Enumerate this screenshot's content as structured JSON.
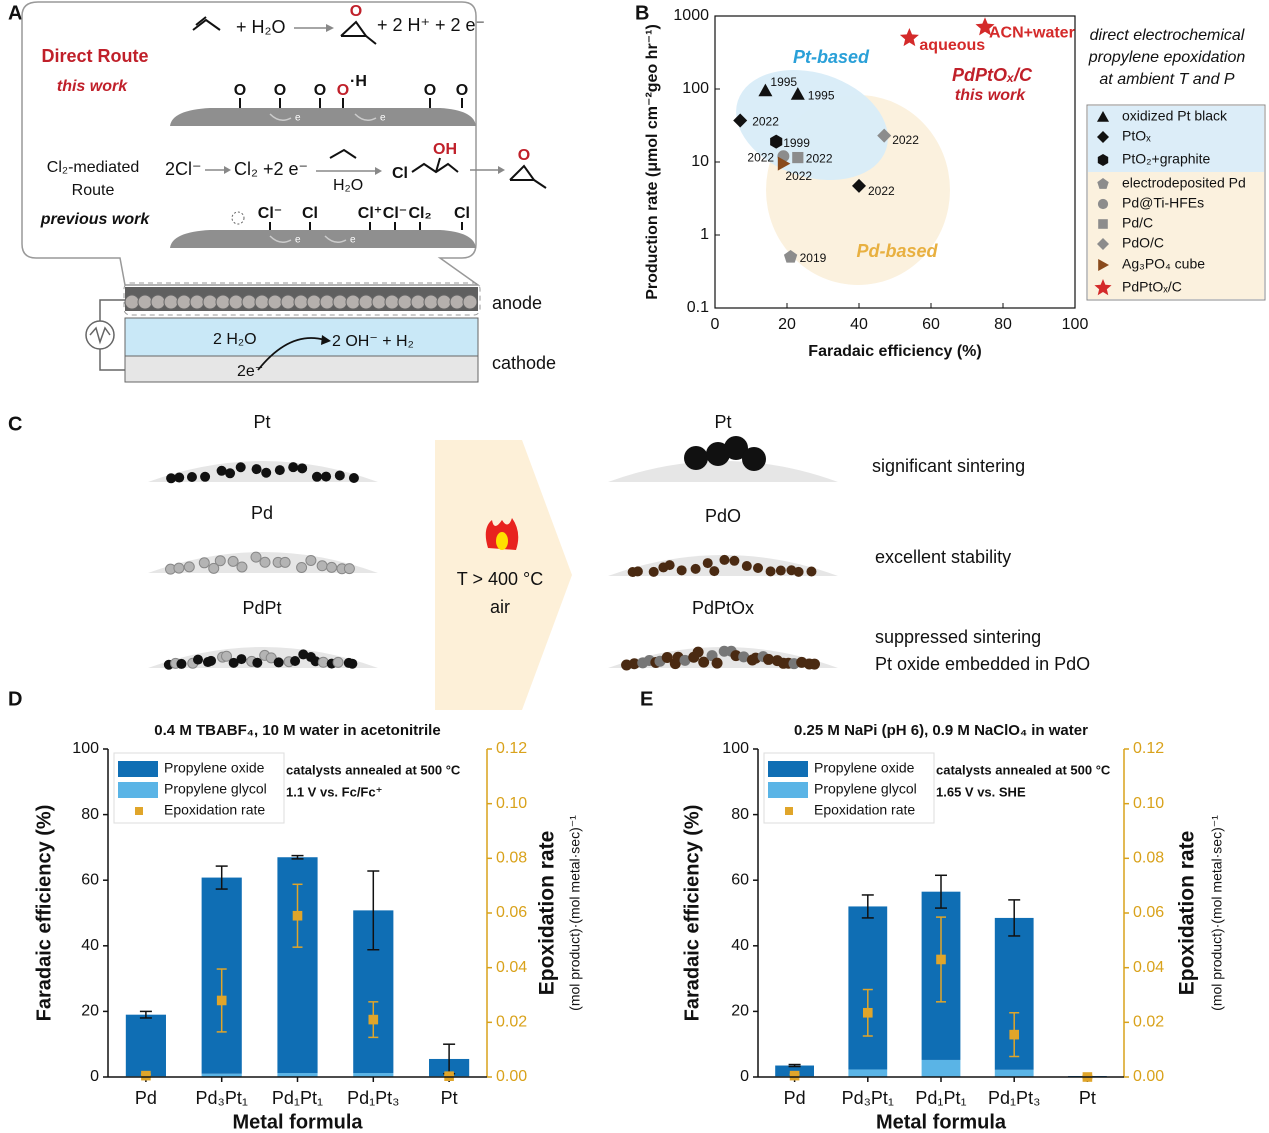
{
  "panels": {
    "A": {
      "letter": "A",
      "equation1_reactant": "+ H₂O",
      "equation1_product": "+ 2 H⁺ + 2 e⁻",
      "epoxide_atom": "O",
      "direct_route": "Direct Route",
      "direct_note": "this work",
      "surface1_atoms": [
        "O",
        "O",
        "O",
        "O",
        "O",
        "O"
      ],
      "surface1_h": "·H",
      "surface_electron": "e",
      "cl_route": [
        "Cl₂-mediated",
        "Route"
      ],
      "cl_note": "previous work",
      "equation2_start": "2Cl⁻",
      "equation2_mid": "Cl₂ +2 e⁻",
      "equation2_water": "H₂O",
      "equation2_cl": "Cl",
      "equation2_oh": "OH",
      "surface2_atoms": [
        "Cl⁻",
        "Cl",
        "Cl⁺",
        "Cl⁻",
        "Cl₂",
        "Cl"
      ],
      "anode": "anode",
      "cathode": "cathode",
      "water": "2 H₂O",
      "products": "2 OH⁻ + H₂",
      "electrons": "2e⁻"
    },
    "C": {
      "letter": "C",
      "before": [
        "Pt",
        "Pd",
        "PdPt"
      ],
      "condition": [
        "T > 400 °C",
        "air"
      ],
      "after": [
        "Pt",
        "PdO",
        "PdPtOx"
      ],
      "outcomes": [
        "significant sintering",
        "excellent stability",
        "suppressed sintering",
        "Pt oxide embedded in PdO"
      ]
    }
  },
  "chart_data": [
    {
      "letter": "B",
      "type": "scatter",
      "xlabel": "Faradaic efficiency (%)",
      "ylabel": "Production rate  (μmol cm⁻²geo hr⁻¹)",
      "xlim": [
        0,
        100
      ],
      "xticks": [
        0,
        20,
        40,
        60,
        80,
        100
      ],
      "ylim": [
        0.1,
        1000
      ],
      "yticks": [
        0.1,
        1,
        10,
        100,
        1000
      ],
      "log_y": true,
      "annotation": [
        "direct electrochemical",
        "propylene epoxidation",
        "at ambient T and P"
      ],
      "regions": [
        "Pt-based",
        "Pd-based"
      ],
      "highlight": [
        "PdPtOₓ/C",
        "this work"
      ],
      "series": [
        {
          "name": "oxidized Pt black",
          "color": "#111111",
          "marker": "triangle",
          "x": [
            14,
            23
          ],
          "y": [
            95,
            85
          ],
          "labels": [
            "1995",
            "1995"
          ]
        },
        {
          "name": "PtOₓ",
          "color": "#111111",
          "marker": "diamond",
          "x": [
            7,
            40
          ],
          "y": [
            37,
            4.7
          ],
          "labels": [
            "2022",
            "2022"
          ]
        },
        {
          "name": "PtO₂+graphite",
          "color": "#111111",
          "marker": "hexagon",
          "x": [
            17
          ],
          "y": [
            19
          ],
          "labels": [
            "1999"
          ]
        },
        {
          "name": "electrodeposited Pd",
          "color": "#8c8c8c",
          "marker": "pentagon",
          "x": [
            21
          ],
          "y": [
            0.5
          ],
          "labels": [
            "2019"
          ]
        },
        {
          "name": "Pd@Ti-HFEs",
          "color": "#8c8c8c",
          "marker": "circle",
          "x": [
            19
          ],
          "y": [
            12
          ],
          "labels": [
            "2022"
          ]
        },
        {
          "name": "Pd/C",
          "color": "#8c8c8c",
          "marker": "square",
          "x": [
            23
          ],
          "y": [
            11.5
          ],
          "labels": [
            "2022"
          ]
        },
        {
          "name": "PdO/C",
          "color": "#8c8c8c",
          "marker": "diamond",
          "x": [
            47
          ],
          "y": [
            23
          ],
          "labels": [
            "2022"
          ]
        },
        {
          "name": "Ag₃PO₄ cube",
          "color": "#8a4b1c",
          "marker": "triangle-right",
          "x": [
            19
          ],
          "y": [
            9.5
          ],
          "labels": [
            "2022"
          ]
        },
        {
          "name": "PdPtOₓ/C",
          "color": "#d42a2a",
          "marker": "star",
          "x": [
            54,
            75
          ],
          "y": [
            500,
            700
          ],
          "labels": [
            "aqueous",
            "ACN+water"
          ]
        }
      ]
    },
    {
      "letter": "D",
      "type": "bar",
      "title": "0.4 M TBABF₄, 10 M water in acetonitrile",
      "xlabel": "Metal formula",
      "ylabel": "Faradaic efficiency (%)",
      "y2label": [
        "Epoxidation rate",
        "(mol product)·(mol metal·sec)⁻¹"
      ],
      "notes": [
        "catalysts annealed at 500 °C",
        "1.1 V vs. Fc/Fc⁺"
      ],
      "categories": [
        "Pd",
        "Pd₃Pt₁",
        "Pd₁Pt₁",
        "Pd₁Pt₃",
        "Pt"
      ],
      "ylim": [
        0,
        100
      ],
      "yticks": [
        0,
        20,
        40,
        60,
        80,
        100
      ],
      "y2lim": [
        0,
        0.12
      ],
      "y2ticks": [
        {
          "value": 0,
          "label": "0.00"
        },
        0.02,
        0.04,
        0.06,
        0.08,
        {
          "value": 0.1,
          "label": "0.10"
        },
        0.12
      ],
      "y2color": "#d9a21b",
      "series": [
        {
          "name": "Propylene oxide",
          "color": "#0f6eb4",
          "values": [
            18.7,
            59.8,
            65.8,
            49.6,
            5.2
          ],
          "errors": [
            1,
            3.5,
            0.5,
            12,
            4.5
          ]
        },
        {
          "name": "Propylene glycol",
          "color": "#5ab4e6",
          "values": [
            0.3,
            1,
            1.2,
            1.2,
            0.3
          ]
        },
        {
          "name": "Epoxidation rate",
          "color": "#e0a52a",
          "axis": "y2",
          "marker": "square",
          "values": [
            0.0005,
            0.028,
            0.059,
            0.021,
            0.0003
          ],
          "errors": [
            0.0005,
            0.0115,
            0.0115,
            0.0065,
            0.0003
          ]
        }
      ]
    },
    {
      "letter": "E",
      "type": "bar",
      "title": "0.25 M NaPi (pH 6), 0.9 M NaClO₄ in water",
      "xlabel": "Metal formula",
      "ylabel": "Faradaic efficiency (%)",
      "y2label": [
        "Epoxidation rate",
        "(mol product)·(mol metal·sec)⁻¹"
      ],
      "notes": [
        "catalysts annealed at 500 °C",
        "1.65 V vs. SHE"
      ],
      "categories": [
        "Pd",
        "Pd₃Pt₁",
        "Pd₁Pt₁",
        "Pd₁Pt₃",
        "Pt"
      ],
      "ylim": [
        0,
        100
      ],
      "yticks": [
        0,
        20,
        40,
        60,
        80,
        100
      ],
      "y2lim": [
        0,
        0.12
      ],
      "y2ticks": [
        {
          "value": 0,
          "label": "0.00"
        },
        0.02,
        0.04,
        0.06,
        0.08,
        {
          "value": 0.1,
          "label": "0.10"
        },
        0.12
      ],
      "y2color": "#d9a21b",
      "series": [
        {
          "name": "Propylene oxide",
          "color": "#0f6eb4",
          "values": [
            3.2,
            49.7,
            51.3,
            46.3,
            0.3
          ],
          "errors": [
            0.3,
            3.5,
            5,
            5.5,
            null
          ]
        },
        {
          "name": "Propylene glycol",
          "color": "#5ab4e6",
          "values": [
            0.3,
            2.3,
            5.2,
            2.2,
            0
          ]
        },
        {
          "name": "Epoxidation rate",
          "color": "#e0a52a",
          "axis": "y2",
          "marker": "square",
          "values": [
            0.0005,
            0.0235,
            0.043,
            0.0155,
            0
          ],
          "errors": [
            0.0005,
            0.0085,
            0.0155,
            0.008,
            0.0005
          ]
        }
      ]
    }
  ]
}
